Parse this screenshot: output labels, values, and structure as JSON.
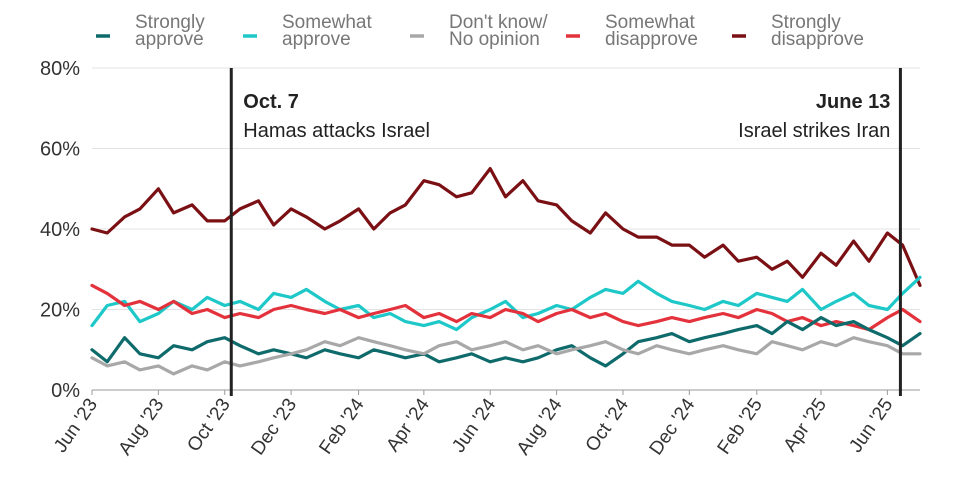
{
  "chart_data": {
    "type": "line",
    "title": "",
    "xlabel": "",
    "ylabel": "",
    "ylim": [
      0,
      80
    ],
    "y_ticks": [
      "0%",
      "20%",
      "40%",
      "60%",
      "80%"
    ],
    "x_range": [
      "2023-06-01",
      "2025-07-01"
    ],
    "x_ticks": [
      {
        "date": "2023-06-01",
        "label": "Jun '23"
      },
      {
        "date": "2023-08-01",
        "label": "Aug '23"
      },
      {
        "date": "2023-10-01",
        "label": "Oct '23"
      },
      {
        "date": "2023-12-01",
        "label": "Dec '23"
      },
      {
        "date": "2024-02-01",
        "label": "Feb '24"
      },
      {
        "date": "2024-04-01",
        "label": "Apr '24"
      },
      {
        "date": "2024-06-01",
        "label": "Jun '24"
      },
      {
        "date": "2024-08-01",
        "label": "Aug '24"
      },
      {
        "date": "2024-10-01",
        "label": "Oct '24"
      },
      {
        "date": "2024-12-01",
        "label": "Dec '24"
      },
      {
        "date": "2025-02-01",
        "label": "Feb '25"
      },
      {
        "date": "2025-04-01",
        "label": "Apr '25"
      },
      {
        "date": "2025-06-01",
        "label": "Jun '25"
      }
    ],
    "grid": "horizontal",
    "legend_position": "top",
    "annotations": [
      {
        "date": "2023-10-07",
        "title": "Oct. 7",
        "subtitle": "Hamas attacks Israel",
        "align": "left"
      },
      {
        "date": "2025-06-13",
        "title": "June 13",
        "subtitle": "Israel strikes Iran",
        "align": "right"
      }
    ],
    "series": [
      {
        "name": "Strongly disapprove",
        "legend": [
          "Strongly",
          "disapprove"
        ],
        "color": "#7b1014",
        "x": [
          "2023-06-01",
          "2023-06-15",
          "2023-07-01",
          "2023-07-15",
          "2023-08-01",
          "2023-08-15",
          "2023-09-01",
          "2023-09-15",
          "2023-10-01",
          "2023-10-15",
          "2023-11-01",
          "2023-11-15",
          "2023-12-01",
          "2023-12-15",
          "2024-01-01",
          "2024-01-15",
          "2024-02-01",
          "2024-02-15",
          "2024-03-01",
          "2024-03-15",
          "2024-04-01",
          "2024-04-15",
          "2024-05-01",
          "2024-05-15",
          "2024-06-01",
          "2024-06-15",
          "2024-07-01",
          "2024-07-15",
          "2024-08-01",
          "2024-08-15",
          "2024-09-01",
          "2024-09-15",
          "2024-10-01",
          "2024-10-15",
          "2024-11-01",
          "2024-11-15",
          "2024-12-01",
          "2024-12-15",
          "2025-01-01",
          "2025-01-15",
          "2025-02-01",
          "2025-02-15",
          "2025-03-01",
          "2025-03-15",
          "2025-04-01",
          "2025-04-15",
          "2025-05-01",
          "2025-05-15",
          "2025-06-01",
          "2025-06-15",
          "2025-07-01"
        ],
        "values": [
          40,
          39,
          43,
          45,
          50,
          44,
          46,
          42,
          42,
          45,
          47,
          41,
          45,
          43,
          40,
          42,
          45,
          40,
          44,
          46,
          52,
          51,
          48,
          49,
          55,
          48,
          52,
          47,
          46,
          42,
          39,
          44,
          40,
          38,
          38,
          36,
          36,
          33,
          36,
          32,
          33,
          30,
          32,
          28,
          34,
          31,
          37,
          32,
          39,
          36,
          26
        ]
      },
      {
        "name": "Somewhat approve",
        "legend": [
          "Somewhat",
          "approve"
        ],
        "color": "#1ec8c8",
        "x": [
          "2023-06-01",
          "2023-06-15",
          "2023-07-01",
          "2023-07-15",
          "2023-08-01",
          "2023-08-15",
          "2023-09-01",
          "2023-09-15",
          "2023-10-01",
          "2023-10-15",
          "2023-11-01",
          "2023-11-15",
          "2023-12-01",
          "2023-12-15",
          "2024-01-01",
          "2024-01-15",
          "2024-02-01",
          "2024-02-15",
          "2024-03-01",
          "2024-03-15",
          "2024-04-01",
          "2024-04-15",
          "2024-05-01",
          "2024-05-15",
          "2024-06-01",
          "2024-06-15",
          "2024-07-01",
          "2024-07-15",
          "2024-08-01",
          "2024-08-15",
          "2024-09-01",
          "2024-09-15",
          "2024-10-01",
          "2024-10-15",
          "2024-11-01",
          "2024-11-15",
          "2024-12-01",
          "2024-12-15",
          "2025-01-01",
          "2025-01-15",
          "2025-02-01",
          "2025-02-15",
          "2025-03-01",
          "2025-03-15",
          "2025-04-01",
          "2025-04-15",
          "2025-05-01",
          "2025-05-15",
          "2025-06-01",
          "2025-06-15",
          "2025-07-01"
        ],
        "values": [
          16,
          21,
          22,
          17,
          19,
          22,
          20,
          23,
          21,
          22,
          20,
          24,
          23,
          25,
          22,
          20,
          21,
          18,
          19,
          17,
          16,
          17,
          15,
          18,
          20,
          22,
          18,
          19,
          21,
          20,
          23,
          25,
          24,
          27,
          24,
          22,
          21,
          20,
          22,
          21,
          24,
          23,
          22,
          25,
          20,
          22,
          24,
          21,
          20,
          24,
          28
        ]
      },
      {
        "name": "Somewhat disapprove",
        "legend": [
          "Somewhat",
          "disapprove"
        ],
        "color": "#e3323c",
        "x": [
          "2023-06-01",
          "2023-06-15",
          "2023-07-01",
          "2023-07-15",
          "2023-08-01",
          "2023-08-15",
          "2023-09-01",
          "2023-09-15",
          "2023-10-01",
          "2023-10-15",
          "2023-11-01",
          "2023-11-15",
          "2023-12-01",
          "2023-12-15",
          "2024-01-01",
          "2024-01-15",
          "2024-02-01",
          "2024-02-15",
          "2024-03-01",
          "2024-03-15",
          "2024-04-01",
          "2024-04-15",
          "2024-05-01",
          "2024-05-15",
          "2024-06-01",
          "2024-06-15",
          "2024-07-01",
          "2024-07-15",
          "2024-08-01",
          "2024-08-15",
          "2024-09-01",
          "2024-09-15",
          "2024-10-01",
          "2024-10-15",
          "2024-11-01",
          "2024-11-15",
          "2024-12-01",
          "2024-12-15",
          "2025-01-01",
          "2025-01-15",
          "2025-02-01",
          "2025-02-15",
          "2025-03-01",
          "2025-03-15",
          "2025-04-01",
          "2025-04-15",
          "2025-05-01",
          "2025-05-15",
          "2025-06-01",
          "2025-06-15",
          "2025-07-01"
        ],
        "values": [
          26,
          24,
          21,
          22,
          20,
          22,
          19,
          20,
          18,
          19,
          18,
          20,
          21,
          20,
          19,
          20,
          18,
          19,
          20,
          21,
          18,
          19,
          17,
          19,
          18,
          20,
          19,
          17,
          19,
          20,
          18,
          19,
          17,
          16,
          17,
          18,
          17,
          18,
          19,
          18,
          20,
          19,
          17,
          18,
          16,
          17,
          16,
          15,
          18,
          20,
          17
        ]
      },
      {
        "name": "Strongly approve",
        "legend": [
          "Strongly",
          "approve"
        ],
        "color": "#0f6b6b",
        "x": [
          "2023-06-01",
          "2023-06-15",
          "2023-07-01",
          "2023-07-15",
          "2023-08-01",
          "2023-08-15",
          "2023-09-01",
          "2023-09-15",
          "2023-10-01",
          "2023-10-15",
          "2023-11-01",
          "2023-11-15",
          "2023-12-01",
          "2023-12-15",
          "2024-01-01",
          "2024-01-15",
          "2024-02-01",
          "2024-02-15",
          "2024-03-01",
          "2024-03-15",
          "2024-04-01",
          "2024-04-15",
          "2024-05-01",
          "2024-05-15",
          "2024-06-01",
          "2024-06-15",
          "2024-07-01",
          "2024-07-15",
          "2024-08-01",
          "2024-08-15",
          "2024-09-01",
          "2024-09-15",
          "2024-10-01",
          "2024-10-15",
          "2024-11-01",
          "2024-11-15",
          "2024-12-01",
          "2024-12-15",
          "2025-01-01",
          "2025-01-15",
          "2025-02-01",
          "2025-02-15",
          "2025-03-01",
          "2025-03-15",
          "2025-04-01",
          "2025-04-15",
          "2025-05-01",
          "2025-05-15",
          "2025-06-01",
          "2025-06-15",
          "2025-07-01"
        ],
        "values": [
          10,
          7,
          13,
          9,
          8,
          11,
          10,
          12,
          13,
          11,
          9,
          10,
          9,
          8,
          10,
          9,
          8,
          10,
          9,
          8,
          9,
          7,
          8,
          9,
          7,
          8,
          7,
          8,
          10,
          11,
          8,
          6,
          9,
          12,
          13,
          14,
          12,
          13,
          14,
          15,
          16,
          14,
          17,
          15,
          18,
          16,
          17,
          15,
          13,
          11,
          14
        ]
      },
      {
        "name": "Don't know/ No opinion",
        "legend": [
          "Don't know/",
          "No opinion"
        ],
        "color": "#a8a8a8",
        "x": [
          "2023-06-01",
          "2023-06-15",
          "2023-07-01",
          "2023-07-15",
          "2023-08-01",
          "2023-08-15",
          "2023-09-01",
          "2023-09-15",
          "2023-10-01",
          "2023-10-15",
          "2023-11-01",
          "2023-11-15",
          "2023-12-01",
          "2023-12-15",
          "2024-01-01",
          "2024-01-15",
          "2024-02-01",
          "2024-02-15",
          "2024-03-01",
          "2024-03-15",
          "2024-04-01",
          "2024-04-15",
          "2024-05-01",
          "2024-05-15",
          "2024-06-01",
          "2024-06-15",
          "2024-07-01",
          "2024-07-15",
          "2024-08-01",
          "2024-08-15",
          "2024-09-01",
          "2024-09-15",
          "2024-10-01",
          "2024-10-15",
          "2024-11-01",
          "2024-11-15",
          "2024-12-01",
          "2024-12-15",
          "2025-01-01",
          "2025-01-15",
          "2025-02-01",
          "2025-02-15",
          "2025-03-01",
          "2025-03-15",
          "2025-04-01",
          "2025-04-15",
          "2025-05-01",
          "2025-05-15",
          "2025-06-01",
          "2025-06-15",
          "2025-07-01"
        ],
        "values": [
          8,
          6,
          7,
          5,
          6,
          4,
          6,
          5,
          7,
          6,
          7,
          8,
          9,
          10,
          12,
          11,
          13,
          12,
          11,
          10,
          9,
          11,
          12,
          10,
          11,
          12,
          10,
          11,
          9,
          10,
          11,
          12,
          10,
          9,
          11,
          10,
          9,
          10,
          11,
          10,
          9,
          12,
          11,
          10,
          12,
          11,
          13,
          12,
          11,
          9,
          9
        ]
      }
    ]
  }
}
